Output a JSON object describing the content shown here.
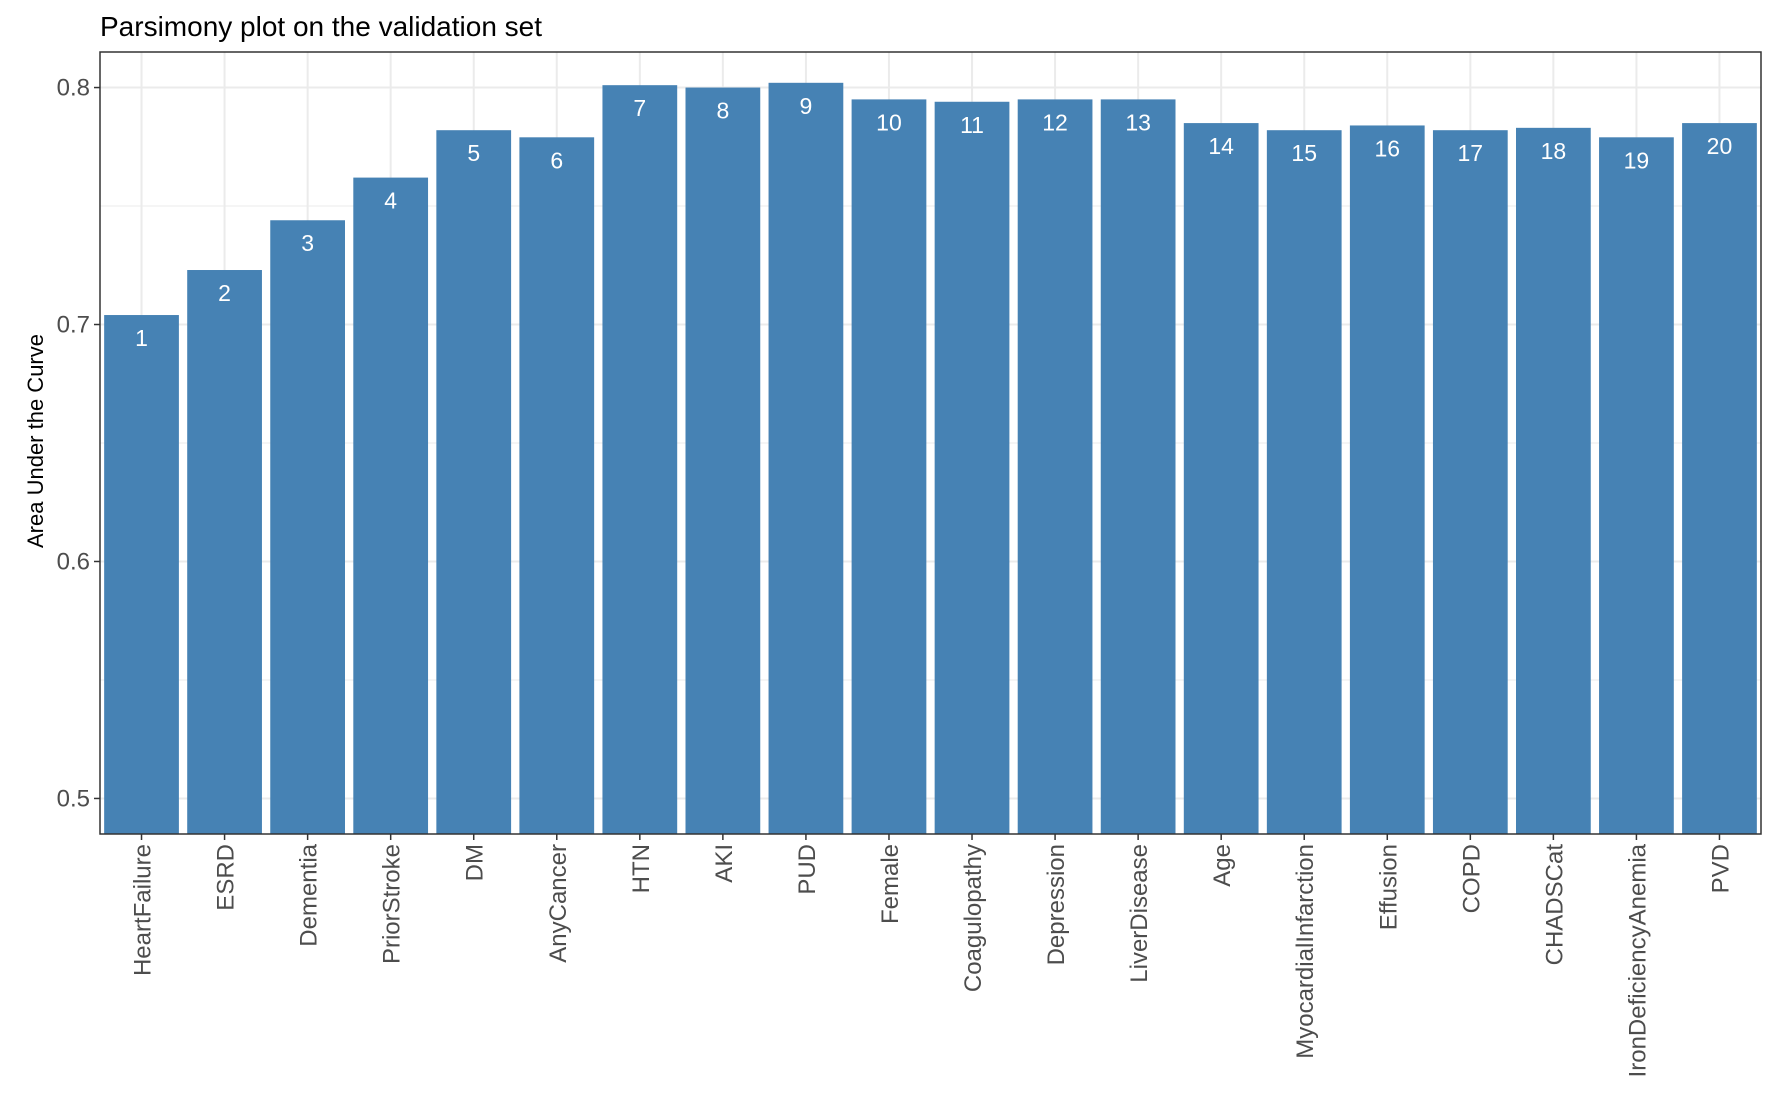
{
  "chart_data": {
    "type": "bar",
    "title": "Parsimony plot on the validation set",
    "xlabel": "",
    "ylabel": "Area Under the Curve",
    "ylim": [
      0.485,
      0.815
    ],
    "yticks": [
      0.5,
      0.6,
      0.7,
      0.8
    ],
    "ytick_labels": [
      "0.5",
      "0.6",
      "0.7",
      "0.8"
    ],
    "grid": true,
    "bar_color": "#4682B4",
    "panel_border_color": "#333333",
    "grid_color": "#ebebeb",
    "categories": [
      "HeartFailure",
      "ESRD",
      "Dementia",
      "PriorStroke",
      "DM",
      "AnyCancer",
      "HTN",
      "AKI",
      "PUD",
      "Female",
      "Coagulopathy",
      "Depression",
      "LiverDisease",
      "Age",
      "MyocardialInfarction",
      "Effusion",
      "COPD",
      "CHADSCat",
      "IronDeficiencyAnemia",
      "PVD"
    ],
    "values": [
      0.704,
      0.723,
      0.744,
      0.762,
      0.782,
      0.779,
      0.801,
      0.8,
      0.802,
      0.795,
      0.794,
      0.795,
      0.795,
      0.785,
      0.782,
      0.784,
      0.782,
      0.783,
      0.779,
      0.785
    ],
    "bar_labels": [
      "1",
      "2",
      "3",
      "4",
      "5",
      "6",
      "7",
      "8",
      "9",
      "10",
      "11",
      "12",
      "13",
      "14",
      "15",
      "16",
      "17",
      "18",
      "19",
      "20"
    ]
  }
}
